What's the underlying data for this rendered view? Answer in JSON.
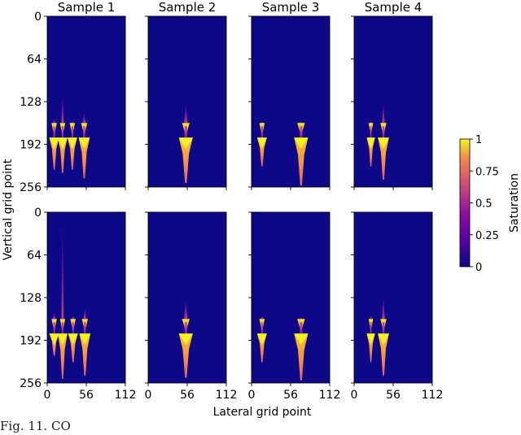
{
  "chart_data": [
    {
      "type": "heatmap",
      "title": "Sample 1",
      "ylabel": "Vertical grid point",
      "xlabel": "Lateral grid point",
      "x_ticks": [
        0,
        56,
        112
      ],
      "y_ticks": [
        0,
        64,
        128,
        192,
        256
      ],
      "xlim": [
        0,
        112
      ],
      "ylim": [
        0,
        256
      ],
      "row": "top",
      "plumes": [
        {
          "x": 10,
          "spread": 7,
          "top": 155,
          "bottom": 230
        },
        {
          "x": 22,
          "spread": 7,
          "top": 118,
          "bottom": 235
        },
        {
          "x": 36,
          "spread": 7,
          "top": 158,
          "bottom": 230
        },
        {
          "x": 53,
          "spread": 8,
          "top": 145,
          "bottom": 243
        }
      ]
    },
    {
      "type": "heatmap",
      "title": "Sample 2",
      "x_ticks": [
        0,
        56,
        112
      ],
      "y_ticks": [
        0,
        64,
        128,
        192,
        256
      ],
      "xlim": [
        0,
        112
      ],
      "ylim": [
        0,
        256
      ],
      "row": "top",
      "plumes": [
        {
          "x": 54,
          "spread": 10,
          "top": 133,
          "bottom": 250
        }
      ]
    },
    {
      "type": "heatmap",
      "title": "Sample 3",
      "x_ticks": [
        0,
        56,
        112
      ],
      "y_ticks": [
        0,
        64,
        128,
        192,
        256
      ],
      "xlim": [
        0,
        112
      ],
      "ylim": [
        0,
        256
      ],
      "row": "top",
      "plumes": [
        {
          "x": 15,
          "spread": 7,
          "top": 158,
          "bottom": 225
        },
        {
          "x": 71,
          "spread": 10,
          "top": 158,
          "bottom": 254
        }
      ]
    },
    {
      "type": "heatmap",
      "title": "Sample 4",
      "x_ticks": [
        0,
        56,
        112
      ],
      "y_ticks": [
        0,
        64,
        128,
        192,
        256
      ],
      "xlim": [
        0,
        112
      ],
      "ylim": [
        0,
        256
      ],
      "row": "top",
      "plumes": [
        {
          "x": 24,
          "spread": 6,
          "top": 158,
          "bottom": 225
        },
        {
          "x": 42,
          "spread": 8,
          "top": 130,
          "bottom": 245
        }
      ]
    },
    {
      "type": "heatmap",
      "ylabel": "Vertical grid point",
      "x_ticks": [
        0,
        56,
        112
      ],
      "y_ticks": [
        0,
        64,
        128,
        192,
        256
      ],
      "xlim": [
        0,
        112
      ],
      "ylim": [
        0,
        256
      ],
      "row": "bottom",
      "plumes": [
        {
          "x": 10,
          "spread": 7,
          "top": 150,
          "bottom": 215
        },
        {
          "x": 22,
          "spread": 7,
          "top": 20,
          "bottom": 250
        },
        {
          "x": 37,
          "spread": 7,
          "top": 155,
          "bottom": 225
        },
        {
          "x": 54,
          "spread": 8,
          "top": 145,
          "bottom": 245
        }
      ]
    },
    {
      "type": "heatmap",
      "x_ticks": [
        0,
        56,
        112
      ],
      "y_ticks": [
        0,
        64,
        128,
        192,
        256
      ],
      "xlim": [
        0,
        112
      ],
      "ylim": [
        0,
        256
      ],
      "row": "bottom",
      "plumes": [
        {
          "x": 54,
          "spread": 10,
          "top": 133,
          "bottom": 248
        }
      ]
    },
    {
      "type": "heatmap",
      "x_ticks": [
        0,
        56,
        112
      ],
      "y_ticks": [
        0,
        64,
        128,
        192,
        256
      ],
      "xlim": [
        0,
        112
      ],
      "ylim": [
        0,
        256
      ],
      "row": "bottom",
      "plumes": [
        {
          "x": 15,
          "spread": 7,
          "top": 155,
          "bottom": 225
        },
        {
          "x": 71,
          "spread": 10,
          "top": 158,
          "bottom": 252
        }
      ]
    },
    {
      "type": "heatmap",
      "x_ticks": [
        0,
        56,
        112
      ],
      "y_ticks": [
        0,
        64,
        128,
        192,
        256
      ],
      "xlim": [
        0,
        112
      ],
      "ylim": [
        0,
        256
      ],
      "row": "bottom",
      "plumes": [
        {
          "x": 24,
          "spread": 6,
          "top": 155,
          "bottom": 225
        },
        {
          "x": 42,
          "spread": 8,
          "top": 128,
          "bottom": 245
        }
      ]
    }
  ],
  "figure": {
    "shared_xlabel": "Lateral grid point",
    "shared_ylabel": "Vertical grid point",
    "colorbar": {
      "label": "Saturation",
      "ticks": [
        "0",
        "0.25",
        "0.5",
        "0.75",
        "1"
      ],
      "vmin": 0,
      "vmax": 1
    },
    "colors": {
      "background": "#0c0887",
      "low": "#6a00a8",
      "mid": "#b12a90",
      "high": "#e16462",
      "peak": "#fca636",
      "max": "#f0f921"
    }
  },
  "caption": "Fig. 11. CO"
}
